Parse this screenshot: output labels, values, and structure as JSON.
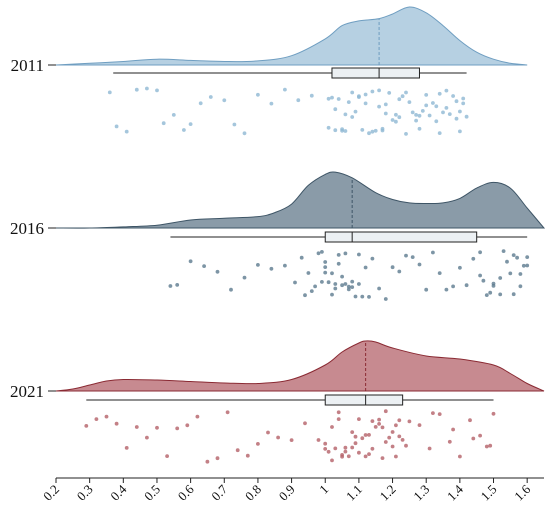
{
  "chart_data": {
    "type": "raincloud",
    "title": "",
    "xlabel": "",
    "ylabel": "",
    "xlim": [
      0.2,
      1.65
    ],
    "x_ticks": [
      "0.2",
      "0.3",
      "0.4",
      "0.5",
      "0.6",
      "0.7",
      "0.8",
      "0.9",
      "1",
      "1.1",
      "1.2",
      "1.3",
      "1.4",
      "1.5",
      "1.6"
    ],
    "x_tick_values": [
      0.2,
      0.3,
      0.4,
      0.5,
      0.6,
      0.7,
      0.8,
      0.9,
      1.0,
      1.1,
      1.2,
      1.3,
      1.4,
      1.5,
      1.6
    ],
    "grid": false,
    "legend": "none",
    "series": [
      {
        "name": "2011",
        "fill": "#b6d0e2",
        "stroke": "#6f9ec1",
        "point_color": "#8fb8d3",
        "median": 1.16,
        "box": {
          "whisker_low": 0.37,
          "q1": 1.02,
          "median": 1.16,
          "q3": 1.28,
          "whisker_high": 1.42
        },
        "density": [
          [
            0.2,
            0.0
          ],
          [
            0.3,
            0.03
          ],
          [
            0.4,
            0.06
          ],
          [
            0.5,
            0.1
          ],
          [
            0.6,
            0.08
          ],
          [
            0.7,
            0.06
          ],
          [
            0.8,
            0.07
          ],
          [
            0.9,
            0.16
          ],
          [
            1.0,
            0.45
          ],
          [
            1.05,
            0.68
          ],
          [
            1.1,
            0.76
          ],
          [
            1.16,
            0.8
          ],
          [
            1.2,
            0.88
          ],
          [
            1.25,
            1.0
          ],
          [
            1.3,
            0.9
          ],
          [
            1.35,
            0.68
          ],
          [
            1.4,
            0.42
          ],
          [
            1.45,
            0.22
          ],
          [
            1.5,
            0.1
          ],
          [
            1.55,
            0.03
          ],
          [
            1.6,
            0.0
          ]
        ],
        "points": [
          0.36,
          0.38,
          0.41,
          0.44,
          0.47,
          0.5,
          0.52,
          0.55,
          0.58,
          0.6,
          0.63,
          0.66,
          0.7,
          0.73,
          0.76,
          0.8,
          0.84,
          0.88,
          0.92,
          0.96,
          1.01,
          1.02,
          1.03,
          1.04,
          1.05,
          1.06,
          1.07,
          1.08,
          1.09,
          1.1,
          1.11,
          1.12,
          1.13,
          1.14,
          1.15,
          1.16,
          1.17,
          1.17,
          1.18,
          1.19,
          1.2,
          1.21,
          1.22,
          1.23,
          1.24,
          1.25,
          1.26,
          1.27,
          1.28,
          1.29,
          1.3,
          1.31,
          1.32,
          1.33,
          1.34,
          1.35,
          1.36,
          1.37,
          1.38,
          1.39,
          1.4,
          1.41,
          1.42,
          1.03,
          1.08,
          1.12,
          1.18,
          1.24,
          1.3,
          1.36,
          1.41,
          1.01,
          1.06,
          1.14,
          1.21,
          1.27,
          1.33,
          1.39,
          1.05,
          1.1,
          1.16,
          1.22,
          1.28,
          1.34,
          1.4
        ]
      },
      {
        "name": "2016",
        "fill": "#8a9ba8",
        "stroke": "#3e5566",
        "point_color": "#5d7a8f",
        "median": 1.08,
        "box": {
          "whisker_low": 0.54,
          "q1": 1.0,
          "median": 1.08,
          "q3": 1.45,
          "whisker_high": 1.6
        },
        "density": [
          [
            0.2,
            0.0
          ],
          [
            0.3,
            0.0
          ],
          [
            0.4,
            0.02
          ],
          [
            0.5,
            0.05
          ],
          [
            0.6,
            0.14
          ],
          [
            0.7,
            0.17
          ],
          [
            0.8,
            0.2
          ],
          [
            0.85,
            0.27
          ],
          [
            0.9,
            0.42
          ],
          [
            0.95,
            0.75
          ],
          [
            1.0,
            0.94
          ],
          [
            1.03,
            0.98
          ],
          [
            1.08,
            0.88
          ],
          [
            1.15,
            0.62
          ],
          [
            1.2,
            0.5
          ],
          [
            1.25,
            0.44
          ],
          [
            1.3,
            0.43
          ],
          [
            1.35,
            0.44
          ],
          [
            1.4,
            0.52
          ],
          [
            1.45,
            0.7
          ],
          [
            1.5,
            0.8
          ],
          [
            1.55,
            0.7
          ],
          [
            1.6,
            0.35
          ],
          [
            1.65,
            0.0
          ]
        ],
        "points": [
          0.54,
          0.56,
          0.6,
          0.64,
          0.68,
          0.72,
          0.76,
          0.8,
          0.84,
          0.88,
          0.91,
          0.93,
          0.95,
          0.97,
          0.98,
          0.99,
          1.0,
          1.01,
          1.02,
          1.03,
          1.04,
          1.05,
          1.06,
          1.07,
          1.08,
          1.09,
          1.1,
          1.12,
          1.14,
          1.16,
          1.18,
          1.2,
          1.22,
          1.24,
          1.26,
          1.28,
          1.3,
          1.32,
          1.34,
          1.36,
          1.38,
          1.4,
          1.42,
          1.44,
          1.46,
          1.48,
          1.5,
          1.52,
          1.54,
          1.56,
          1.58,
          1.59,
          1.6,
          0.96,
          0.99,
          1.02,
          1.05,
          1.08,
          1.11,
          0.94,
          1.0,
          1.03,
          1.06,
          1.46,
          1.5,
          1.55,
          1.58,
          1.49,
          1.53,
          1.57,
          1.0,
          1.04,
          1.07,
          1.1,
          1.13,
          1.47,
          1.52,
          1.56,
          1.6
        ]
      },
      {
        "name": "2021",
        "fill": "#c78a90",
        "stroke": "#8a2a33",
        "point_color": "#b46068",
        "median": 1.12,
        "box": {
          "whisker_low": 0.29,
          "q1": 1.0,
          "median": 1.12,
          "q3": 1.23,
          "whisker_high": 1.5
        },
        "density": [
          [
            0.2,
            0.0
          ],
          [
            0.25,
            0.04
          ],
          [
            0.3,
            0.12
          ],
          [
            0.35,
            0.2
          ],
          [
            0.4,
            0.23
          ],
          [
            0.5,
            0.22
          ],
          [
            0.6,
            0.19
          ],
          [
            0.7,
            0.16
          ],
          [
            0.8,
            0.15
          ],
          [
            0.9,
            0.23
          ],
          [
            1.0,
            0.52
          ],
          [
            1.05,
            0.78
          ],
          [
            1.1,
            0.96
          ],
          [
            1.12,
            1.0
          ],
          [
            1.15,
            0.98
          ],
          [
            1.2,
            0.86
          ],
          [
            1.3,
            0.7
          ],
          [
            1.4,
            0.64
          ],
          [
            1.5,
            0.52
          ],
          [
            1.55,
            0.35
          ],
          [
            1.6,
            0.15
          ],
          [
            1.65,
            0.0
          ]
        ],
        "points": [
          0.29,
          0.32,
          0.35,
          0.38,
          0.41,
          0.44,
          0.47,
          0.5,
          0.53,
          0.56,
          0.59,
          0.62,
          0.65,
          0.68,
          0.71,
          0.74,
          0.77,
          0.8,
          0.83,
          0.86,
          0.9,
          0.94,
          0.98,
          1.0,
          1.01,
          1.02,
          1.03,
          1.04,
          1.05,
          1.06,
          1.07,
          1.08,
          1.09,
          1.1,
          1.11,
          1.12,
          1.13,
          1.14,
          1.15,
          1.16,
          1.17,
          1.18,
          1.19,
          1.2,
          1.21,
          1.22,
          1.23,
          1.25,
          1.28,
          1.31,
          1.34,
          1.37,
          1.4,
          1.43,
          1.46,
          1.48,
          1.5,
          1.02,
          1.06,
          1.1,
          1.14,
          1.18,
          1.22,
          1.05,
          1.09,
          1.13,
          1.17,
          1.21,
          1.32,
          1.38,
          1.44,
          1.49,
          1.0,
          1.04,
          1.08,
          1.12,
          1.16,
          1.2,
          1.24
        ]
      }
    ]
  }
}
